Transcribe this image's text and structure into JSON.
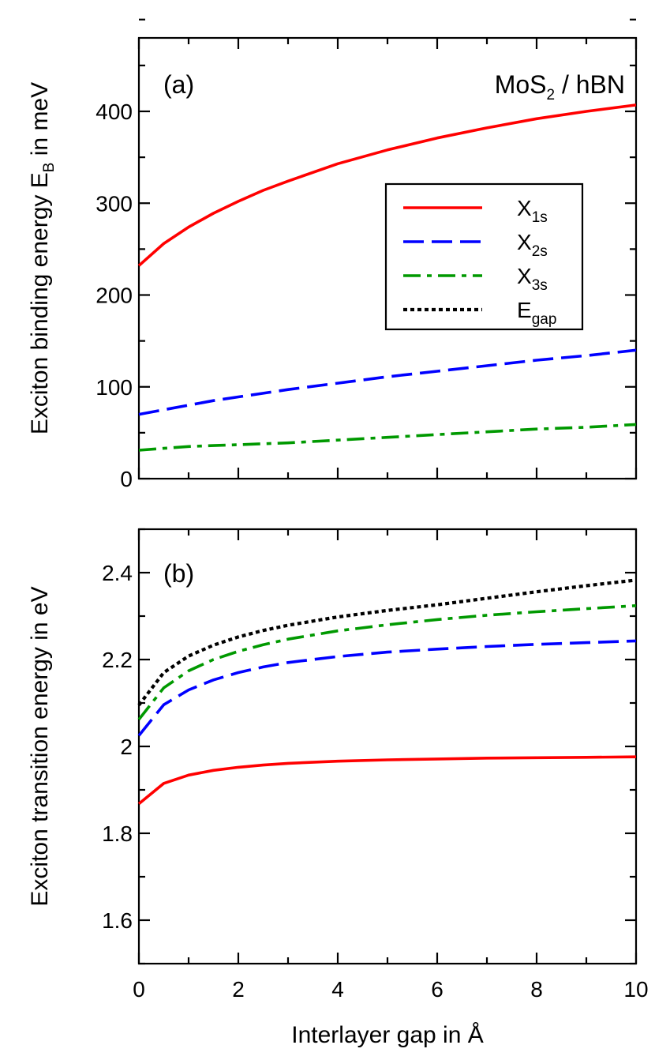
{
  "chart_data": [
    {
      "type": "line",
      "panel": "(a)",
      "annotation": "MoS₂ / hBN",
      "annotation_parts": {
        "main": "MoS",
        "sub": "2",
        "rest": " / hBN"
      },
      "ylabel": "Exciton binding energy E",
      "ylabel_sub": "B",
      "ylabel_rest": " in meV",
      "xlim": [
        0,
        10
      ],
      "ylim": [
        0,
        480
      ],
      "yticks": [
        0,
        100,
        200,
        300,
        400
      ],
      "ytick_labels": [
        "0",
        "100",
        "200",
        "300",
        "400"
      ],
      "x": [
        0,
        0.5,
        1,
        1.5,
        2,
        2.5,
        3,
        4,
        5,
        6,
        7,
        8,
        9,
        10
      ],
      "series": [
        {
          "name": "X1s",
          "name_main": "X",
          "name_sub": "1s",
          "color": "#ff0000",
          "dash": "solid",
          "values": [
            232,
            256,
            274,
            289,
            302,
            314,
            324,
            343,
            358,
            371,
            382,
            392,
            400,
            407
          ]
        },
        {
          "name": "X2s",
          "name_main": "X",
          "name_sub": "2s",
          "color": "#0000ff",
          "dash": "dashed",
          "values": [
            70,
            75,
            80,
            85,
            89,
            93,
            97,
            104,
            111,
            117,
            123,
            129,
            134,
            140
          ]
        },
        {
          "name": "X3s",
          "name_main": "X",
          "name_sub": "3s",
          "color": "#009900",
          "dash": "dashdot",
          "values": [
            31,
            33,
            35,
            36,
            37,
            38,
            39,
            42,
            45,
            48,
            51,
            54,
            56,
            59
          ]
        }
      ],
      "legend": [
        {
          "main": "X",
          "sub": "1s",
          "color": "#ff0000",
          "dash": "solid"
        },
        {
          "main": "X",
          "sub": "2s",
          "color": "#0000ff",
          "dash": "dashed"
        },
        {
          "main": "X",
          "sub": "3s",
          "color": "#009900",
          "dash": "dashdot"
        },
        {
          "main": "E",
          "sub": "gap",
          "color": "#000000",
          "dash": "dotted"
        }
      ],
      "legend_position": "right, upper-middle"
    },
    {
      "type": "line",
      "panel": "(b)",
      "ylabel": "Exciton transition energy in eV",
      "xlabel": "Interlayer gap in Å",
      "xlim": [
        0,
        10
      ],
      "ylim": [
        1.5,
        2.5
      ],
      "yticks": [
        1.6,
        1.8,
        2.0,
        2.2,
        2.4
      ],
      "ytick_labels": [
        "1.6",
        "1.8",
        "2",
        "2.2",
        "2.4"
      ],
      "xticks": [
        0,
        2,
        4,
        6,
        8,
        10
      ],
      "xtick_labels": [
        "0",
        "2",
        "4",
        "6",
        "8",
        "10"
      ],
      "x": [
        0,
        0.5,
        1,
        1.5,
        2,
        2.5,
        3,
        4,
        5,
        6,
        7,
        8,
        9,
        10
      ],
      "series": [
        {
          "name": "X1s",
          "color": "#ff0000",
          "dash": "solid",
          "values": [
            1.868,
            1.915,
            1.934,
            1.945,
            1.952,
            1.957,
            1.961,
            1.966,
            1.969,
            1.971,
            1.973,
            1.974,
            1.975,
            1.976
          ]
        },
        {
          "name": "X2s",
          "color": "#0000ff",
          "dash": "dashed",
          "values": [
            2.025,
            2.096,
            2.13,
            2.153,
            2.17,
            2.183,
            2.193,
            2.207,
            2.217,
            2.224,
            2.23,
            2.235,
            2.239,
            2.243
          ]
        },
        {
          "name": "X3s",
          "color": "#009900",
          "dash": "dashdot",
          "values": [
            2.062,
            2.135,
            2.174,
            2.2,
            2.219,
            2.234,
            2.247,
            2.266,
            2.28,
            2.292,
            2.302,
            2.31,
            2.317,
            2.324
          ]
        },
        {
          "name": "Egap",
          "color": "#000000",
          "dash": "dotted",
          "values": [
            2.095,
            2.17,
            2.208,
            2.233,
            2.252,
            2.267,
            2.279,
            2.298,
            2.313,
            2.326,
            2.341,
            2.356,
            2.37,
            2.383
          ]
        }
      ]
    }
  ]
}
